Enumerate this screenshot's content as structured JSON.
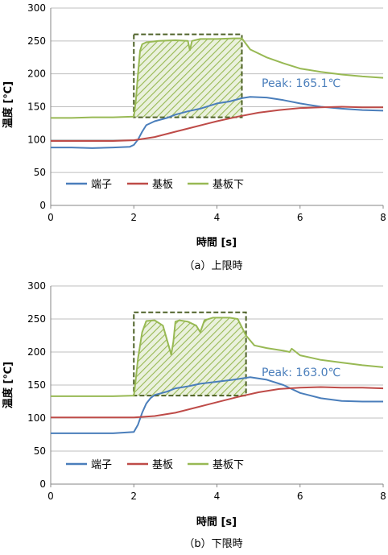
{
  "colors": {
    "terminal": "#4a7ebb",
    "substrate": "#be4b48",
    "under_substrate": "#98b954",
    "peak_text": "#4a7ebb",
    "box": "#4f6228",
    "hatch": "#98b954",
    "grid": "#bfbfbf",
    "axis": "#868686"
  },
  "chart_data": [
    {
      "type": "line",
      "caption": "（a）上限時",
      "xlabel": "時間 [s]",
      "ylabel": "温度 [℃]",
      "xlim": [
        0,
        8
      ],
      "ylim": [
        0,
        300
      ],
      "xticks": [
        0,
        2,
        4,
        6,
        8
      ],
      "yticks": [
        0,
        50,
        100,
        150,
        200,
        250,
        300
      ],
      "grid": "horizontal",
      "legend_placement": "lower-left",
      "annotation": "Peak: 165.1℃",
      "highlight": {
        "x": [
          2.0,
          4.6
        ],
        "y": [
          134,
          260
        ],
        "style": "dashed-box-hatched"
      },
      "series": [
        {
          "name": "端子",
          "key": "terminal",
          "x": [
            0,
            0.5,
            1.0,
            1.5,
            1.9,
            2.0,
            2.1,
            2.2,
            2.3,
            2.5,
            2.8,
            3.0,
            3.3,
            3.6,
            4.0,
            4.3,
            4.6,
            4.8,
            5.2,
            5.6,
            6.0,
            6.5,
            7.0,
            7.5,
            8.0
          ],
          "y": [
            88,
            88,
            87,
            88,
            89,
            92,
            100,
            112,
            122,
            128,
            133,
            138,
            143,
            147,
            155,
            158,
            163,
            165,
            164,
            160,
            155,
            150,
            147,
            145,
            144
          ]
        },
        {
          "name": "基板",
          "key": "substrate",
          "x": [
            0,
            0.5,
            1.0,
            1.5,
            2.0,
            2.5,
            3.0,
            3.5,
            4.0,
            4.5,
            5.0,
            5.5,
            6.0,
            6.5,
            7.0,
            7.5,
            8.0
          ],
          "y": [
            98,
            98,
            98,
            98,
            99,
            104,
            112,
            120,
            128,
            135,
            141,
            145,
            148,
            149,
            150,
            149,
            149
          ]
        },
        {
          "name": "基板下",
          "key": "under_substrate",
          "x": [
            0,
            0.5,
            1.0,
            1.5,
            2.0,
            2.05,
            2.1,
            2.15,
            2.2,
            2.3,
            2.6,
            3.0,
            3.3,
            3.35,
            3.4,
            3.6,
            4.0,
            4.4,
            4.6,
            4.8,
            5.2,
            5.6,
            6.0,
            6.5,
            7.0,
            7.5,
            8.0
          ],
          "y": [
            133,
            133,
            134,
            134,
            135,
            160,
            200,
            235,
            245,
            248,
            250,
            251,
            250,
            236,
            250,
            253,
            253,
            254,
            254,
            237,
            225,
            216,
            208,
            203,
            199,
            196,
            194
          ]
        }
      ]
    },
    {
      "type": "line",
      "caption": "（b）下限時",
      "xlabel": "時間 [s]",
      "ylabel": "温度 [℃]",
      "xlim": [
        0,
        8
      ],
      "ylim": [
        0,
        300
      ],
      "xticks": [
        0,
        2,
        4,
        6,
        8
      ],
      "yticks": [
        0,
        50,
        100,
        150,
        200,
        250,
        300
      ],
      "grid": "horizontal",
      "legend_placement": "lower-left",
      "annotation": "Peak: 163.0℃",
      "highlight": {
        "x": [
          2.0,
          4.7
        ],
        "y": [
          134,
          260
        ],
        "style": "dashed-box-hatched"
      },
      "series": [
        {
          "name": "端子",
          "key": "terminal",
          "x": [
            0,
            0.5,
            1.0,
            1.5,
            2.0,
            2.1,
            2.2,
            2.3,
            2.4,
            2.5,
            2.8,
            3.0,
            3.3,
            3.6,
            4.0,
            4.4,
            4.8,
            5.2,
            5.6,
            6.0,
            6.5,
            7.0,
            7.5,
            8.0
          ],
          "y": [
            77,
            77,
            77,
            77,
            79,
            90,
            108,
            122,
            130,
            135,
            140,
            145,
            148,
            152,
            155,
            158,
            162,
            158,
            150,
            138,
            130,
            126,
            125,
            125
          ]
        },
        {
          "name": "基板",
          "key": "substrate",
          "x": [
            0,
            0.5,
            1.0,
            1.5,
            2.0,
            2.5,
            3.0,
            3.5,
            4.0,
            4.5,
            5.0,
            5.5,
            6.0,
            6.5,
            7.0,
            7.5,
            8.0
          ],
          "y": [
            101,
            101,
            101,
            101,
            101,
            103,
            108,
            116,
            124,
            132,
            139,
            144,
            146,
            147,
            146,
            146,
            145
          ]
        },
        {
          "name": "基板下",
          "key": "under_substrate",
          "x": [
            0,
            0.5,
            1.0,
            1.5,
            2.0,
            2.05,
            2.1,
            2.2,
            2.3,
            2.5,
            2.7,
            2.9,
            2.95,
            3.0,
            3.1,
            3.3,
            3.5,
            3.6,
            3.7,
            3.9,
            4.1,
            4.3,
            4.5,
            4.7,
            4.9,
            5.2,
            5.6,
            5.75,
            5.8,
            6.0,
            6.5,
            7.0,
            7.5,
            8.0
          ],
          "y": [
            133,
            133,
            133,
            133,
            134,
            160,
            190,
            230,
            247,
            248,
            240,
            196,
            215,
            246,
            248,
            246,
            240,
            230,
            248,
            252,
            252,
            252,
            250,
            225,
            210,
            206,
            202,
            200,
            205,
            195,
            188,
            184,
            180,
            177
          ]
        }
      ]
    }
  ]
}
